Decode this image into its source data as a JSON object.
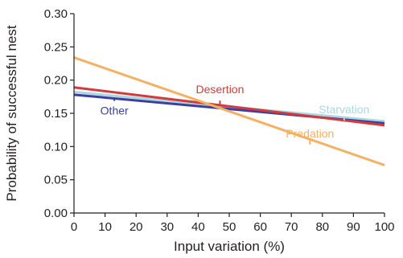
{
  "chart_data": {
    "type": "line",
    "xlabel": "Input variation (%)",
    "ylabel": "Probability of successful nest",
    "xlim": [
      0,
      100
    ],
    "ylim": [
      0,
      0.3
    ],
    "x_ticks": [
      "0",
      "10",
      "20",
      "30",
      "40",
      "50",
      "60",
      "70",
      "80",
      "90",
      "100"
    ],
    "y_ticks": [
      "0.00",
      "0.05",
      "0.10",
      "0.15",
      "0.20",
      "0.25",
      "0.30"
    ],
    "grid": false,
    "legend": "inline-labels",
    "series": [
      {
        "name": "Starvation",
        "color": "#a9d8e3",
        "x": [
          0,
          100
        ],
        "y": [
          0.182,
          0.138
        ],
        "label_at": [
          87,
          0.15
        ]
      },
      {
        "name": "Other",
        "color": "#3b3fa0",
        "x": [
          0,
          100
        ],
        "y": [
          0.178,
          0.135
        ],
        "label_at": [
          13,
          0.148
        ]
      },
      {
        "name": "Desertion",
        "color": "#d23a3d",
        "x": [
          0,
          100
        ],
        "y": [
          0.189,
          0.132
        ],
        "label_at": [
          47,
          0.18
        ]
      },
      {
        "name": "Predation",
        "color": "#f5b063",
        "x": [
          0,
          100
        ],
        "y": [
          0.234,
          0.072
        ],
        "label_at": [
          76,
          0.114
        ]
      }
    ]
  }
}
